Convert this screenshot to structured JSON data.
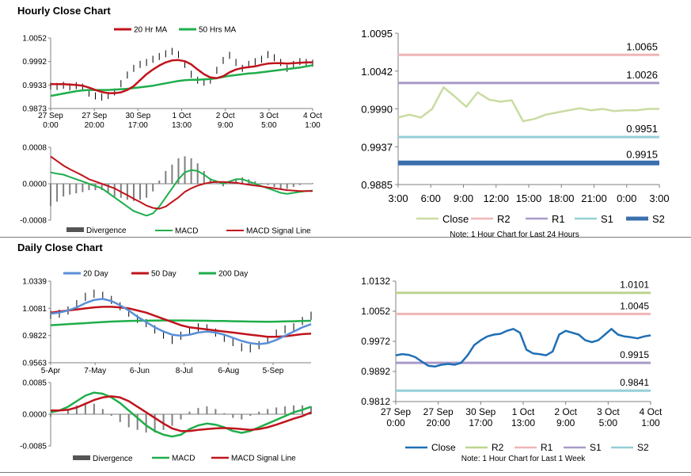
{
  "hourly_section": {
    "title": "Hourly Close Chart"
  },
  "daily_section": {
    "title": "Daily Close Chart"
  },
  "colors": {
    "close_dark": "#1f6fb5",
    "close_light": "#c9dca2",
    "ma_red": "#c0141c",
    "ma_green": "#1fae4b",
    "ma_blue": "#5a8fd6",
    "r2": "#bcd48e",
    "r1": "#efb5b5",
    "s1": "#a99ac9",
    "s2": "#95cfd6",
    "s2_dark": "#3b6fae",
    "divergence": "#7f7f7f"
  },
  "chart_data": [
    {
      "id": "hourly-price",
      "type": "line",
      "legend": [
        "20 Hr MA",
        "50 Hrs MA"
      ],
      "ylim": [
        0.9873,
        1.0052
      ],
      "yticks": [
        "1.0052",
        "0.9992",
        "0.9933",
        "0.9873"
      ],
      "xticks": [
        [
          "27 Sep",
          "0:00"
        ],
        [
          "27 Sep",
          "20:00"
        ],
        [
          "30 Sep",
          "17:00"
        ],
        [
          "1 Oct",
          "13:00"
        ],
        [
          "2 Oct",
          "9:00"
        ],
        [
          "3 Oct",
          "5:00"
        ],
        [
          "4 Oct",
          "1:00"
        ]
      ],
      "close": [
        0.993,
        0.9929,
        0.9932,
        0.9928,
        0.9931,
        0.9927,
        0.9912,
        0.9905,
        0.9902,
        0.9906,
        0.9915,
        0.9936,
        0.9958,
        0.9975,
        0.9985,
        0.999,
        0.9998,
        1.0005,
        1.0012,
        1.0018,
        1.001,
        0.9985,
        0.996,
        0.9945,
        0.994,
        0.9945,
        0.997,
        0.9995,
        1.0008,
        0.999,
        0.9975,
        0.9985,
        0.9992,
        0.9998,
        1.001,
        1.0002,
        0.999,
        0.9975,
        0.9985,
        0.9992,
        0.999,
        0.9988
      ],
      "ma20": [
        0.9935,
        0.9935,
        0.9935,
        0.9934,
        0.9933,
        0.9931,
        0.9926,
        0.992,
        0.9915,
        0.9912,
        0.9912,
        0.9914,
        0.992,
        0.993,
        0.9945,
        0.996,
        0.9972,
        0.9982,
        0.999,
        0.9995,
        0.9996,
        0.9993,
        0.9985,
        0.9972,
        0.996,
        0.9952,
        0.995,
        0.9955,
        0.9965,
        0.9972,
        0.9976,
        0.9978,
        0.998,
        0.9984,
        0.9987,
        0.9988,
        0.9988,
        0.9987,
        0.9988,
        0.9989,
        0.999,
        0.999
      ],
      "ma50": [
        0.9905,
        0.9908,
        0.9911,
        0.9914,
        0.9917,
        0.9919,
        0.992,
        0.992,
        0.992,
        0.992,
        0.9921,
        0.9922,
        0.9923,
        0.9925,
        0.9927,
        0.9929,
        0.9931,
        0.9934,
        0.9937,
        0.994,
        0.9943,
        0.9945,
        0.9946,
        0.9946,
        0.9947,
        0.9948,
        0.995,
        0.9953,
        0.9956,
        0.9958,
        0.996,
        0.9962,
        0.9963,
        0.9965,
        0.9967,
        0.9969,
        0.9971,
        0.9973,
        0.9975,
        0.9977,
        0.998,
        0.9983
      ]
    },
    {
      "id": "hourly-macd",
      "type": "line",
      "legend": [
        "Divergence",
        "MACD",
        "MACD Signal Line"
      ],
      "ylim": [
        -0.0008,
        0.0008
      ],
      "yticks": [
        "0.0008",
        "0.0000",
        "-0.0008"
      ],
      "macd": [
        0.00025,
        0.00022,
        0.0002,
        0.00015,
        0.0001,
        5e-05,
        0.0,
        -5e-05,
        -0.0001,
        -0.0002,
        -0.0003,
        -0.0004,
        -0.0005,
        -0.0006,
        -0.00065,
        -0.0007,
        -0.00065,
        -0.0005,
        -0.0003,
        -0.0001,
        0.0001,
        0.00025,
        0.0003,
        0.00028,
        0.0002,
        0.0001,
        5e-05,
        0.0,
        5e-05,
        0.0001,
        0.0001,
        5e-05,
        0.0,
        -5e-05,
        -0.0001,
        -0.00015,
        -0.0002,
        -0.00022,
        -0.0002,
        -0.00018,
        -0.00016,
        -0.00015
      ],
      "signal": [
        0.0006,
        0.0005,
        0.0004,
        0.00032,
        0.00025,
        0.00018,
        0.0001,
        5e-05,
        0.0,
        -5e-05,
        -0.0001,
        -0.00018,
        -0.00025,
        -0.00033,
        -0.0004,
        -0.00048,
        -0.00053,
        -0.00055,
        -0.0005,
        -0.0004,
        -0.0003,
        -0.00018,
        -0.0001,
        -4e-05,
        0.0,
        3e-05,
        4e-05,
        4e-05,
        3e-05,
        2e-05,
        0.0,
        -2e-05,
        -4e-05,
        -6e-05,
        -8e-05,
        -0.0001,
        -0.00012,
        -0.00014,
        -0.00015,
        -0.00016,
        -0.00016,
        -0.00016
      ]
    },
    {
      "id": "hourly-levels",
      "type": "line",
      "ylim": [
        0.9885,
        1.0095
      ],
      "yticks": [
        "1.0095",
        "1.0042",
        "0.9990",
        "0.9937",
        "0.9885"
      ],
      "xticks": [
        "3:00",
        "6:00",
        "9:00",
        "12:00",
        "15:00",
        "18:00",
        "21:00",
        "0:00",
        "3:00"
      ],
      "legend": [
        "Close",
        "R2",
        "R1",
        "S1",
        "S2"
      ],
      "levels": {
        "r2": 1.0065,
        "r1": 1.0026,
        "s1": 0.9951,
        "s2": 0.9915
      },
      "level_labels": {
        "r2": "1.0065",
        "r1": "1.0026",
        "s1": "0.9951",
        "s2": "0.9915"
      },
      "close": [
        0.9978,
        0.9982,
        0.9978,
        0.999,
        1.002,
        1.0007,
        0.9993,
        1.0013,
        1.0003,
        1.0,
        1.0002,
        0.9973,
        0.9976,
        0.9982,
        0.9985,
        0.9988,
        0.9991,
        0.9988,
        0.999,
        0.9987,
        0.9988,
        0.9988,
        0.999,
        0.999
      ],
      "note": "Note: 1 Hour Chart for Last 24 Hours"
    },
    {
      "id": "daily-price",
      "type": "line",
      "legend": [
        "20 Day",
        "50 Day",
        "200 Day"
      ],
      "ylim": [
        0.9563,
        1.0339
      ],
      "yticks": [
        "1.0339",
        "1.0081",
        "0.9822",
        "0.9563"
      ],
      "xticks": [
        "5-Apr",
        "7-May",
        "6-Jun",
        "8-Jul",
        "6-Aug",
        "5-Sep"
      ],
      "close": [
        1.002,
        1.003,
        1.006,
        1.012,
        1.019,
        1.022,
        1.02,
        1.016,
        1.01,
        1.004,
        0.998,
        0.994,
        0.988,
        0.983,
        0.978,
        0.982,
        0.987,
        0.99,
        0.989,
        0.985,
        0.98,
        0.976,
        0.971,
        0.97,
        0.973,
        0.978,
        0.984,
        0.988,
        0.99,
        0.996,
        1.001
      ],
      "ma20": [
        1.003,
        1.004,
        1.006,
        1.009,
        1.013,
        1.016,
        1.017,
        1.015,
        1.011,
        1.006,
        1.0,
        0.995,
        0.99,
        0.986,
        0.983,
        0.982,
        0.983,
        0.985,
        0.986,
        0.985,
        0.983,
        0.98,
        0.977,
        0.975,
        0.974,
        0.975,
        0.978,
        0.982,
        0.986,
        0.99,
        0.993
      ],
      "ma50": [
        1.004,
        1.005,
        1.006,
        1.007,
        1.008,
        1.009,
        1.0095,
        1.0095,
        1.009,
        1.008,
        1.006,
        1.004,
        1.001,
        0.998,
        0.995,
        0.992,
        0.99,
        0.989,
        0.988,
        0.987,
        0.986,
        0.985,
        0.984,
        0.983,
        0.982,
        0.981,
        0.981,
        0.9815,
        0.9825,
        0.9835,
        0.984
      ],
      "ma200": [
        0.992,
        0.9925,
        0.993,
        0.9935,
        0.994,
        0.9945,
        0.995,
        0.9955,
        0.9958,
        0.996,
        0.9962,
        0.9963,
        0.9964,
        0.9965,
        0.9965,
        0.9965,
        0.9964,
        0.9963,
        0.9962,
        0.9961,
        0.996,
        0.9958,
        0.9956,
        0.9955,
        0.9954,
        0.9953,
        0.9954,
        0.9956,
        0.9958,
        0.996,
        0.9962
      ]
    },
    {
      "id": "daily-macd",
      "type": "line",
      "legend": [
        "Divergence",
        "MACD",
        "MACD Signal Line"
      ],
      "ylim": [
        -0.0085,
        0.0085
      ],
      "yticks": [
        "0.0085",
        "0.0000",
        "-0.0085"
      ],
      "macd": [
        0.0005,
        0.001,
        0.002,
        0.0035,
        0.005,
        0.0058,
        0.0055,
        0.0045,
        0.003,
        0.001,
        -0.001,
        -0.003,
        -0.0045,
        -0.0055,
        -0.006,
        -0.0055,
        -0.004,
        -0.003,
        -0.0025,
        -0.0028,
        -0.0035,
        -0.0045,
        -0.005,
        -0.0045,
        -0.0035,
        -0.0025,
        -0.0015,
        -0.0005,
        0.0005,
        0.0012,
        0.002
      ],
      "signal": [
        0.001,
        0.001,
        0.0012,
        0.0018,
        0.0028,
        0.0038,
        0.0045,
        0.0048,
        0.0045,
        0.0035,
        0.002,
        0.0005,
        -0.001,
        -0.0025,
        -0.0038,
        -0.0045,
        -0.0045,
        -0.0042,
        -0.004,
        -0.0038,
        -0.0037,
        -0.0038,
        -0.004,
        -0.0042,
        -0.004,
        -0.0035,
        -0.0028,
        -0.002,
        -0.0012,
        -0.0005,
        0.0005
      ]
    },
    {
      "id": "daily-levels",
      "type": "line",
      "ylim": [
        0.9812,
        1.0132
      ],
      "yticks": [
        "1.0132",
        "1.0052",
        "0.9972",
        "0.9892",
        "0.9812"
      ],
      "xticks": [
        [
          "27 Sep",
          "0:00"
        ],
        [
          "27 Sep",
          "20:00"
        ],
        [
          "30 Sep",
          "17:00"
        ],
        [
          "1 Oct",
          "13:00"
        ],
        [
          "2 Oct",
          "9:00"
        ],
        [
          "3 Oct",
          "5:00"
        ],
        [
          "4 Oct",
          "1:00"
        ]
      ],
      "legend": [
        "Close",
        "R2",
        "R1",
        "S1",
        "S2"
      ],
      "levels": {
        "r2": 1.0101,
        "r1": 1.0045,
        "s1": 0.9915,
        "s2": 0.9841
      },
      "level_labels": {
        "r2": "1.0101",
        "r1": "1.0045",
        "s1": "0.9915",
        "s2": "0.9841"
      },
      "close": [
        0.9935,
        0.9938,
        0.9936,
        0.993,
        0.9918,
        0.9907,
        0.9905,
        0.991,
        0.9912,
        0.991,
        0.9915,
        0.9935,
        0.9962,
        0.9975,
        0.9985,
        0.999,
        0.9992,
        1.0,
        1.0005,
        0.9995,
        0.995,
        0.994,
        0.9938,
        0.9935,
        0.9945,
        0.999,
        1.0,
        0.9995,
        0.999,
        0.9975,
        0.997,
        0.9975,
        0.999,
        1.0005,
        0.999,
        0.9985,
        0.9983,
        0.998,
        0.9985,
        0.9988
      ],
      "note": "Note: 1 Hour Chart for Last 1 Week"
    }
  ]
}
